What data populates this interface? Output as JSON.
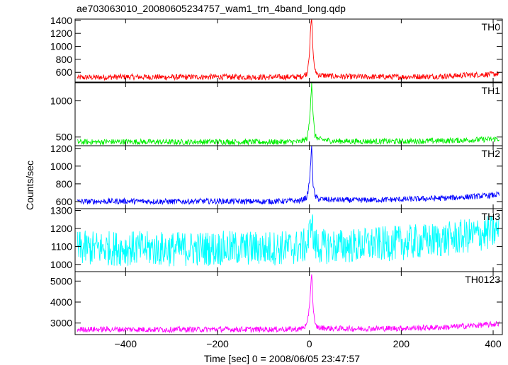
{
  "title": "ae703063010_20080605234757_wam1_trn_4band_long.qdp",
  "chart_data": {
    "type": "line",
    "title": "ae703063010_20080605234757_wam1_trn_4band_long.qdp",
    "xlabel": "Time [sec] 0 = 2008/06/05 23:47:57",
    "ylabel": "Counts/sec",
    "xlim": [
      -510,
      420
    ],
    "x_ticks": [
      -400,
      -200,
      0,
      200,
      400
    ],
    "x_tick_labels": [
      "−400",
      "−200",
      "0",
      "200",
      "400"
    ],
    "grid": false,
    "panels": [
      {
        "name": "TH0",
        "color": "#ff0000",
        "ylim": [
          450,
          1420
        ],
        "y_ticks": [
          600,
          800,
          1000,
          1200,
          1400
        ],
        "x": [
          -500,
          -400,
          -300,
          -200,
          -100,
          -20,
          -5,
          0,
          3,
          5,
          8,
          12,
          20,
          50,
          100,
          200,
          300,
          350,
          400,
          410
        ],
        "values": [
          520,
          530,
          525,
          530,
          525,
          530,
          580,
          900,
          1300,
          1420,
          900,
          620,
          560,
          540,
          530,
          530,
          540,
          560,
          570,
          580
        ]
      },
      {
        "name": "TH1",
        "color": "#00ee00",
        "ylim": [
          380,
          1250
        ],
        "y_ticks": [
          500,
          1000
        ],
        "x": [
          -500,
          -400,
          -300,
          -200,
          -100,
          -20,
          -5,
          0,
          3,
          5,
          8,
          12,
          20,
          50,
          100,
          200,
          300,
          350,
          400,
          410
        ],
        "values": [
          430,
          435,
          430,
          435,
          430,
          435,
          480,
          700,
          1050,
          1250,
          800,
          520,
          470,
          445,
          440,
          440,
          450,
          460,
          470,
          475
        ]
      },
      {
        "name": "TH2",
        "color": "#0000ff",
        "ylim": [
          520,
          1230
        ],
        "y_ticks": [
          600,
          800,
          1000,
          1200
        ],
        "x": [
          -500,
          -400,
          -300,
          -200,
          -100,
          -20,
          -5,
          0,
          3,
          5,
          8,
          12,
          20,
          50,
          100,
          200,
          300,
          350,
          400,
          410
        ],
        "values": [
          600,
          605,
          600,
          605,
          600,
          610,
          650,
          820,
          1050,
          1220,
          800,
          660,
          630,
          620,
          615,
          625,
          640,
          655,
          670,
          680
        ]
      },
      {
        "name": "TH3",
        "color": "#00ffff",
        "ylim": [
          960,
          1310
        ],
        "y_ticks": [
          1000,
          1100,
          1200,
          1300
        ],
        "x": [
          -500,
          -400,
          -300,
          -200,
          -100,
          -20,
          -5,
          0,
          3,
          5,
          8,
          12,
          20,
          50,
          100,
          200,
          300,
          350,
          400,
          410
        ],
        "values": [
          1090,
          1090,
          1085,
          1090,
          1090,
          1095,
          1110,
          1160,
          1230,
          1280,
          1150,
          1110,
          1100,
          1100,
          1105,
          1120,
          1140,
          1160,
          1180,
          1190
        ]
      },
      {
        "name": "TH0123",
        "color": "#ff00ff",
        "ylim": [
          2450,
          5450
        ],
        "y_ticks": [
          3000,
          4000,
          5000
        ],
        "x": [
          -500,
          -400,
          -300,
          -200,
          -100,
          -20,
          -5,
          0,
          3,
          5,
          8,
          12,
          20,
          50,
          100,
          200,
          300,
          350,
          400,
          410
        ],
        "values": [
          2700,
          2700,
          2690,
          2700,
          2700,
          2710,
          2900,
          3800,
          4800,
          5400,
          3800,
          2900,
          2780,
          2740,
          2730,
          2750,
          2800,
          2870,
          2940,
          2980
        ]
      }
    ]
  }
}
